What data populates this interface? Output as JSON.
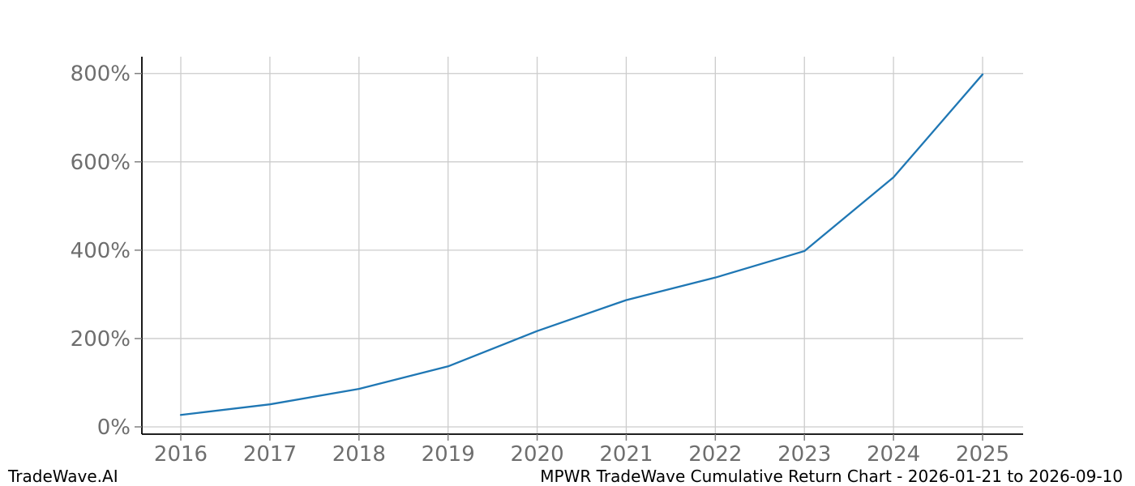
{
  "footer": {
    "brand": "TradeWave.AI",
    "caption": "MPWR TradeWave Cumulative Return Chart - 2026-01-21 to 2026-09-10"
  },
  "chart_data": {
    "type": "line",
    "title": "MPWR TradeWave Cumulative Return Chart - 2026-01-21 to 2026-09-10",
    "series_name": "Cumulative Return",
    "x": [
      2016,
      2017,
      2018,
      2019,
      2020,
      2021,
      2022,
      2023,
      2024,
      2025
    ],
    "values": [
      27,
      51,
      86,
      137,
      217,
      287,
      338,
      398,
      565,
      798
    ],
    "x_tick_labels": [
      "2016",
      "2017",
      "2018",
      "2019",
      "2020",
      "2021",
      "2022",
      "2023",
      "2024",
      "2025"
    ],
    "y_ticks": [
      0,
      200,
      400,
      600,
      800
    ],
    "y_tick_labels": [
      "0%",
      "200%",
      "400%",
      "600%",
      "800%"
    ],
    "xlim": [
      2015.563,
      2025.455
    ],
    "ylim": [
      -16.5,
      838
    ],
    "xlabel": "",
    "ylabel": "",
    "grid": true,
    "legend_position": "none",
    "line_color": "#1f77b4",
    "grid_color": "#cccccc",
    "spine_color": "#000000",
    "tick_mark_color": "#808080",
    "tick_label_color": "#6e6e6e"
  }
}
